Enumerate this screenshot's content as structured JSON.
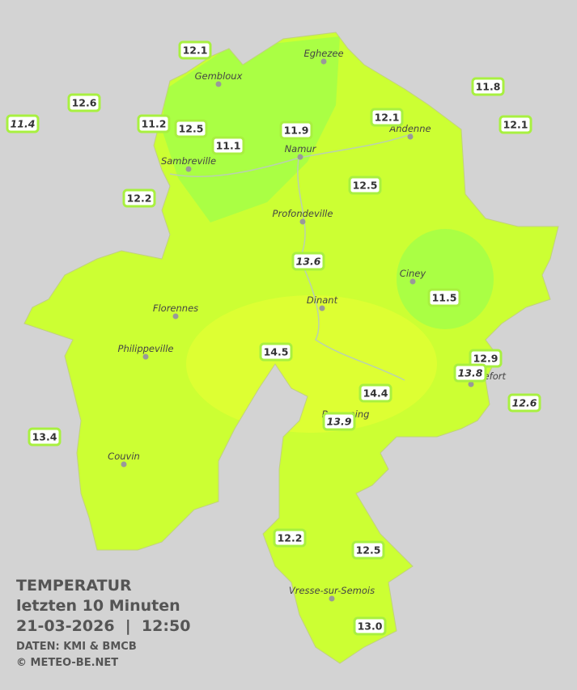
{
  "title": "TEMPERATUR",
  "subtitle": "letzten 10 Minuten",
  "datetime": "21-03-2026  |  12:50",
  "source": "DATEN: KMI & BMCB",
  "copyright": "© METEO-BE.NET",
  "places": [
    "Eghezee",
    "Gembloux",
    "Andenne",
    "Namur",
    "Sambreville",
    "Profondeville",
    "Ciney",
    "Dinant",
    "Florennes",
    "Philippeville",
    "Rochefort",
    "Beauraing",
    "Couvin",
    "Vresse-sur-Semois"
  ],
  "stations": [
    {
      "value": 12.1
    },
    {
      "value": 12.6
    },
    {
      "value": 11.4,
      "italic": true
    },
    {
      "value": 11.2
    },
    {
      "value": 12.5
    },
    {
      "value": 11.1
    },
    {
      "value": 11.9
    },
    {
      "value": 12.1
    },
    {
      "value": 11.8
    },
    {
      "value": 12.1
    },
    {
      "value": 12.2
    },
    {
      "value": 12.5
    },
    {
      "value": 13.6,
      "italic": true
    },
    {
      "value": 11.5
    },
    {
      "value": 14.5
    },
    {
      "value": 12.9
    },
    {
      "value": 13.8,
      "italic": true
    },
    {
      "value": 14.4
    },
    {
      "value": 12.6,
      "italic": true
    },
    {
      "value": 13.9,
      "italic": true
    },
    {
      "value": 13.4
    },
    {
      "value": 12.2
    },
    {
      "value": 12.5
    },
    {
      "value": 13,
      "label": "13.0"
    }
  ]
}
